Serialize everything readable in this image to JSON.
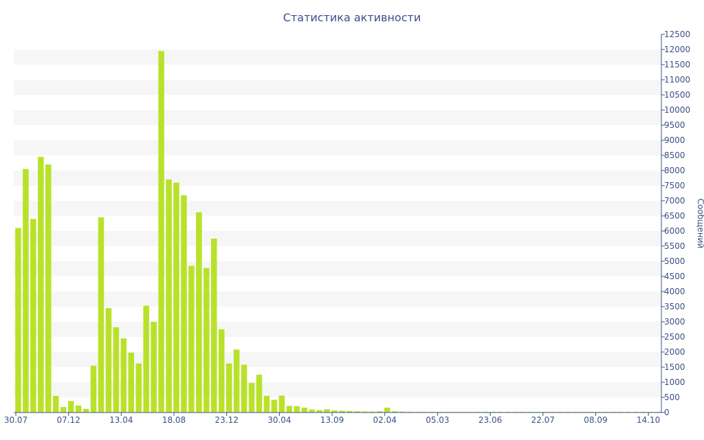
{
  "chart_data": {
    "type": "bar",
    "title": "Статистика активности",
    "xlabel": "",
    "ylabel": "Сообщений",
    "ylim": [
      0,
      12500
    ],
    "ytick_step": 500,
    "grid": "alternating horizontal bands",
    "y_axis_position": "right",
    "bar_color": "#b8e22a",
    "band_color": "#f6f6f6",
    "axis_color": "#3b4f85",
    "xtick_labels": [
      {
        "label": "30.07",
        "index": 0
      },
      {
        "label": "07.12",
        "index": 7
      },
      {
        "label": "13.04",
        "index": 14
      },
      {
        "label": "18.08",
        "index": 21
      },
      {
        "label": "23.12",
        "index": 28
      },
      {
        "label": "30.04",
        "index": 35
      },
      {
        "label": "13.09",
        "index": 42
      },
      {
        "label": "02.04",
        "index": 49
      },
      {
        "label": "05.03",
        "index": 56
      },
      {
        "label": "23.06",
        "index": 63
      },
      {
        "label": "22.07",
        "index": 70
      },
      {
        "label": "08.09",
        "index": 77
      },
      {
        "label": "14.10",
        "index": 84
      }
    ],
    "values": [
      6100,
      8050,
      6400,
      8450,
      8200,
      550,
      180,
      380,
      230,
      120,
      1550,
      6450,
      3450,
      2820,
      2450,
      1980,
      1620,
      3530,
      3000,
      11950,
      7700,
      7600,
      7180,
      4850,
      6620,
      4780,
      5750,
      2750,
      1620,
      2080,
      1580,
      980,
      1250,
      550,
      420,
      560,
      220,
      210,
      160,
      100,
      80,
      110,
      70,
      60,
      50,
      40,
      35,
      30,
      40,
      160,
      40,
      30,
      25,
      20,
      20,
      20,
      20,
      20,
      20,
      20,
      20,
      20,
      20,
      20,
      20,
      20,
      20,
      20,
      20,
      20,
      20,
      20,
      20,
      20,
      20,
      20,
      20,
      20,
      20,
      20,
      20,
      20,
      20,
      20,
      20,
      20
    ]
  }
}
